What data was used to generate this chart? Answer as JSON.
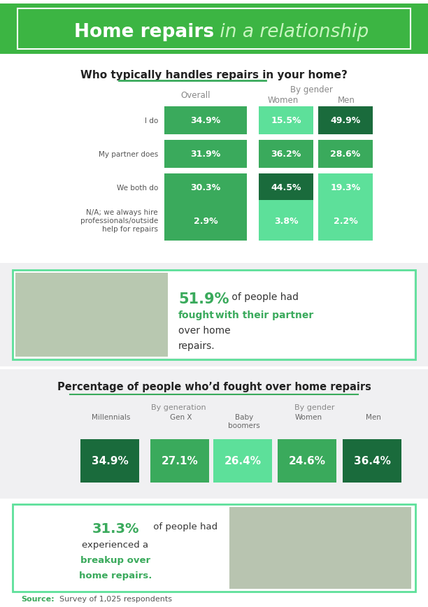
{
  "title_bold": "Home repairs",
  "title_italic": " in a relationship",
  "bg_green": "#3CB543",
  "white": "#ffffff",
  "light_gray": "#f0f0f2",
  "section1_title": "Who typically handles repairs in your home?",
  "table_rows": [
    "I do",
    "My partner does",
    "We both do",
    "N/A; we always hire\nprofessionals/outside\nhelp for repairs"
  ],
  "overall_vals": [
    "34.9%",
    "31.9%",
    "30.3%",
    "2.9%"
  ],
  "women_vals": [
    "15.5%",
    "36.2%",
    "44.5%",
    "3.8%"
  ],
  "men_vals": [
    "49.9%",
    "28.6%",
    "19.3%",
    "2.2%"
  ],
  "overall_colors": [
    "#3aaa5c",
    "#3aaa5c",
    "#3aaa5c",
    "#3aaa5c"
  ],
  "women_colors": [
    "#5de09a",
    "#3aaa5c",
    "#1a6b3c",
    "#5de09a"
  ],
  "men_colors": [
    "#1a6b3c",
    "#3aaa5c",
    "#5de09a",
    "#5de09a"
  ],
  "stat1_pct": "51.9%",
  "section2_title": "Percentage of people who’d fought over home repairs",
  "gen_labels": [
    "Millennials",
    "Gen X",
    "Baby\nboomers"
  ],
  "gen_vals": [
    "34.9%",
    "27.1%",
    "26.4%"
  ],
  "gen_colors": [
    "#1a6b3c",
    "#3aaa5c",
    "#5de09a"
  ],
  "gender2_labels": [
    "Women",
    "Men"
  ],
  "gender2_vals": [
    "24.6%",
    "36.4%"
  ],
  "gender2_colors": [
    "#3aaa5c",
    "#1a6b3c"
  ],
  "stat2_pct": "31.3%",
  "source_label": "Source:",
  "source_text": "Survey of 1,025 respondents",
  "green_dark": "#1a6b3c",
  "green_mid": "#3aaa5c",
  "green_light": "#5de09a"
}
